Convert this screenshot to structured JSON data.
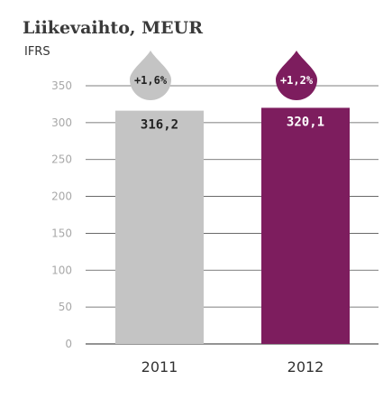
{
  "chart_data": {
    "type": "bar",
    "title": "Liikevaihto, MEUR",
    "subtitle": "IFRS",
    "categories": [
      "2011",
      "2012"
    ],
    "values": [
      316.2,
      320.1
    ],
    "value_labels": [
      "316,2",
      "320,1"
    ],
    "growth_labels": [
      "+1,6%",
      "+1,2%"
    ],
    "ylim": [
      0,
      350
    ],
    "yticks": [
      0,
      50,
      100,
      150,
      200,
      250,
      300,
      350
    ],
    "grid": true,
    "colors": {
      "bars": [
        "#c4c4c4",
        "#7d1d5e"
      ],
      "drops": [
        "#c4c4c4",
        "#7d1d5e"
      ],
      "value_text": [
        "#222222",
        "#ffffff"
      ],
      "drop_text": [
        "#222222",
        "#ffffff"
      ],
      "grid": "#555555",
      "ticks": "#a8a8a8"
    }
  }
}
